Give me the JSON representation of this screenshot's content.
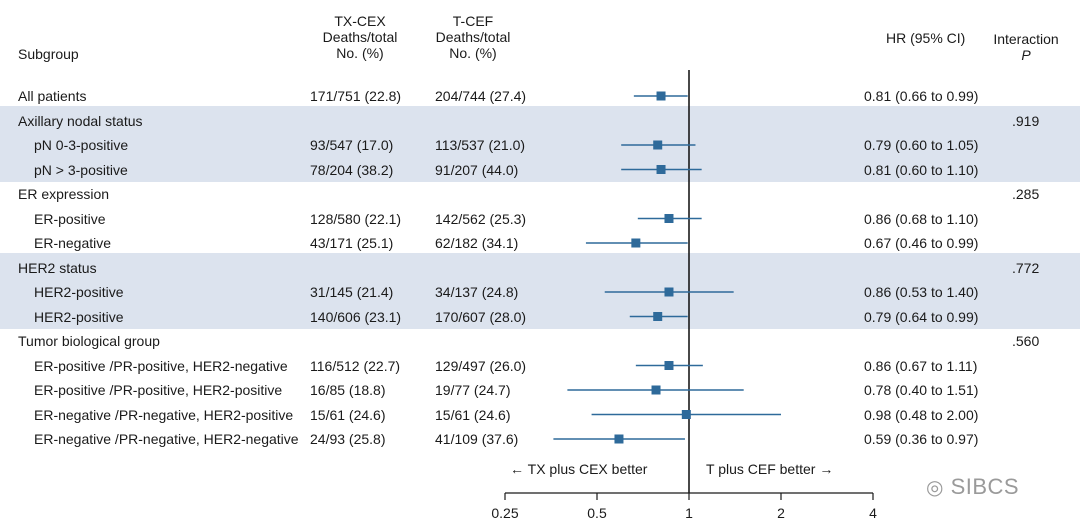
{
  "header": {
    "subgroup": "Subgroup",
    "tx_cex": [
      "TX-CEX",
      "Deaths/total",
      "No. (%)"
    ],
    "t_cef": [
      "T-CEF",
      "Deaths/total",
      "No. (%)"
    ],
    "hr": "HR (95% CI)",
    "interaction": "Interaction",
    "interaction_p": "P"
  },
  "rows": [
    {
      "label": "All patients",
      "tx": "171/751 (22.8)",
      "tcef": "204/744 (27.4)",
      "hr_text": "0.81 (0.66 to 0.99)",
      "hr": 0.81,
      "lo": 0.66,
      "hi": 0.99,
      "p": ""
    },
    {
      "label": "Axillary nodal status",
      "header": true,
      "p": ".919"
    },
    {
      "label": "pN 0-3-positive",
      "tx": "93/547 (17.0)",
      "tcef": "113/537 (21.0)",
      "hr_text": "0.79 (0.60 to 1.05)",
      "hr": 0.79,
      "lo": 0.6,
      "hi": 1.05,
      "p": ""
    },
    {
      "label": "pN > 3-positive",
      "tx": "78/204 (38.2)",
      "tcef": "91/207 (44.0)",
      "hr_text": "0.81 (0.60 to 1.10)",
      "hr": 0.81,
      "lo": 0.6,
      "hi": 1.1,
      "p": ""
    },
    {
      "label": "ER expression",
      "header": true,
      "p": ".285"
    },
    {
      "label": "ER-positive",
      "tx": "128/580 (22.1)",
      "tcef": "142/562 (25.3)",
      "hr_text": "0.86 (0.68 to 1.10)",
      "hr": 0.86,
      "lo": 0.68,
      "hi": 1.1,
      "p": ""
    },
    {
      "label": "ER-negative",
      "tx": "43/171 (25.1)",
      "tcef": "62/182 (34.1)",
      "hr_text": "0.67 (0.46 to 0.99)",
      "hr": 0.67,
      "lo": 0.46,
      "hi": 0.99,
      "p": ""
    },
    {
      "label": "HER2 status",
      "header": true,
      "p": ".772"
    },
    {
      "label": "HER2-positive",
      "tx": "31/145 (21.4)",
      "tcef": "34/137 (24.8)",
      "hr_text": "0.86 (0.53 to 1.40)",
      "hr": 0.86,
      "lo": 0.53,
      "hi": 1.4,
      "p": ""
    },
    {
      "label": "HER2-positive",
      "tx": "140/606 (23.1)",
      "tcef": "170/607 (28.0)",
      "hr_text": "0.79 (0.64 to 0.99)",
      "hr": 0.79,
      "lo": 0.64,
      "hi": 0.99,
      "p": ""
    },
    {
      "label": "Tumor biological group",
      "header": true,
      "p": ".560"
    },
    {
      "label": "ER-positive /PR-positive, HER2-negative",
      "tx": "116/512 (22.7)",
      "tcef": "129/497 (26.0)",
      "hr_text": "0.86 (0.67 to 1.11)",
      "hr": 0.86,
      "lo": 0.67,
      "hi": 1.11,
      "p": ""
    },
    {
      "label": "ER-positive /PR-positive, HER2-positive",
      "tx": "16/85 (18.8)",
      "tcef": "19/77 (24.7)",
      "hr_text": "0.78 (0.40 to 1.51)",
      "hr": 0.78,
      "lo": 0.4,
      "hi": 1.51,
      "p": ""
    },
    {
      "label": "ER-negative /PR-negative, HER2-positive",
      "tx": "15/61 (24.6)",
      "tcef": "15/61 (24.6)",
      "hr_text": "0.98 (0.48 to 2.00)",
      "hr": 0.98,
      "lo": 0.48,
      "hi": 2.0,
      "p": ""
    },
    {
      "label": "ER-negative /PR-negative, HER2-negative",
      "tx": "24/93 (25.8)",
      "tcef": "41/109 (37.6)",
      "hr_text": "0.59 (0.36 to 0.97)",
      "hr": 0.59,
      "lo": 0.36,
      "hi": 0.97,
      "p": ""
    }
  ],
  "chart_data": {
    "type": "forest",
    "x_scale": "log",
    "xlim": [
      0.25,
      4
    ],
    "reference_line": 1,
    "ticks": [
      0.25,
      0.5,
      1,
      2,
      4
    ],
    "tick_labels": [
      "0.25",
      "0.5",
      "1",
      "2",
      "4"
    ],
    "left_label": "← TX plus CEX better",
    "right_label": "T plus CEF better →"
  },
  "colors": {
    "marker": "#2e6a9a",
    "band": "#dce3ee",
    "axis": "#1a1a1a"
  },
  "watermark": "SIBCS"
}
